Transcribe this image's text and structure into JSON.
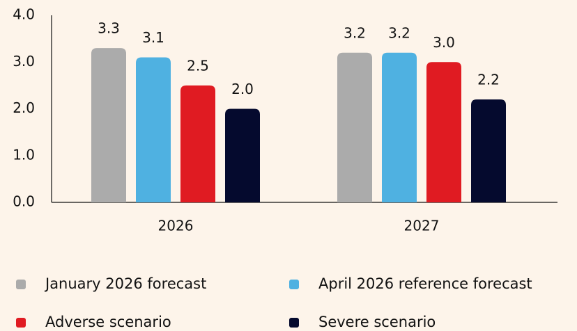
{
  "chart_data": {
    "type": "bar",
    "categories": [
      "2026",
      "2027"
    ],
    "series": [
      {
        "name": "January 2026 forecast",
        "color": "#ababab",
        "values": [
          3.3,
          3.2
        ],
        "value_labels": [
          "3.3",
          "3.2"
        ]
      },
      {
        "name": "April 2026 reference forecast",
        "color": "#4fb1e1",
        "values": [
          3.1,
          3.2
        ],
        "value_labels": [
          "3.1",
          "3.2"
        ]
      },
      {
        "name": "Adverse scenario",
        "color": "#e01b22",
        "values": [
          2.5,
          3.0
        ],
        "value_labels": [
          "2.5",
          "3.0"
        ]
      },
      {
        "name": "Severe scenario",
        "color": "#050a2e",
        "values": [
          2.0,
          2.2
        ],
        "value_labels": [
          "2.0",
          "2.2"
        ]
      }
    ],
    "ylim": [
      0,
      4
    ],
    "yticks": [
      {
        "value": 0,
        "label": "0.0"
      },
      {
        "value": 1,
        "label": "1.0"
      },
      {
        "value": 2,
        "label": "2.0"
      },
      {
        "value": 3,
        "label": "3.0"
      },
      {
        "value": 4,
        "label": "4.0"
      }
    ],
    "grid": false
  }
}
